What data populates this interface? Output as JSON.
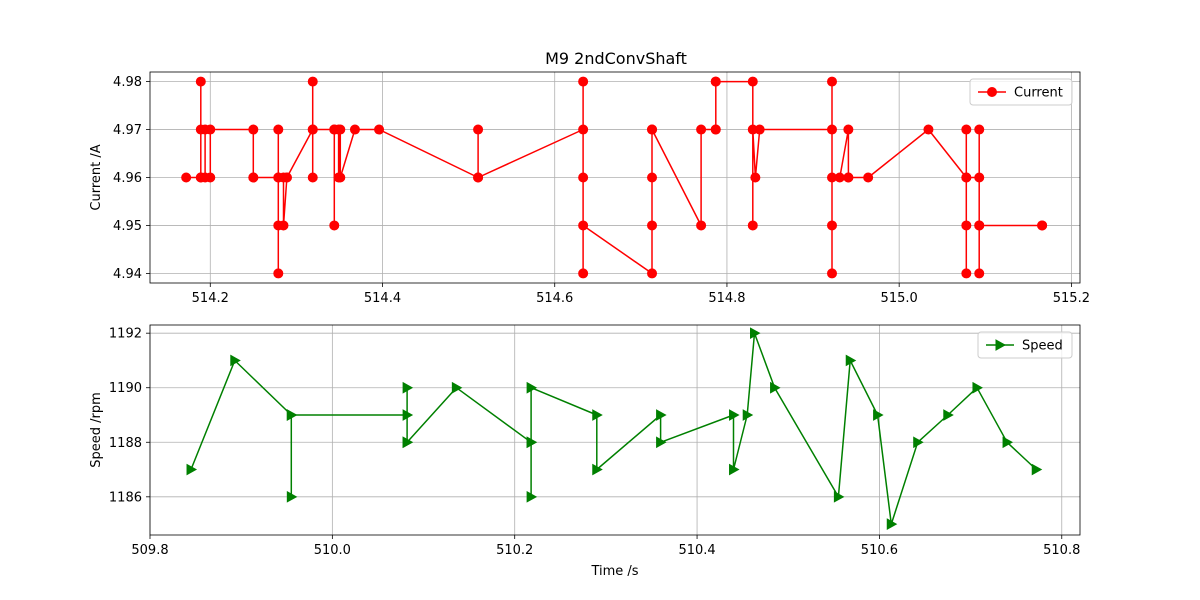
{
  "title": "M9 2ndConvShaft",
  "chart_data": [
    {
      "type": "line",
      "title": "M9 2ndConvShaft",
      "xlabel": "",
      "ylabel": "Current /A",
      "xlim": [
        514.13,
        515.21
      ],
      "ylim": [
        4.938,
        4.982
      ],
      "xticks": [
        514.2,
        514.4,
        514.6,
        514.8,
        515.0,
        515.2
      ],
      "xticklabels": [
        "514.2",
        "514.4",
        "514.6",
        "514.8",
        "515.0",
        "515.2"
      ],
      "yticks": [
        4.94,
        4.95,
        4.96,
        4.97,
        4.98
      ],
      "yticklabels": [
        "4.94",
        "4.95",
        "4.96",
        "4.97",
        "4.98"
      ],
      "grid": true,
      "legend_position": "upper right",
      "series": [
        {
          "name": "Current",
          "color": "#ff0000",
          "marker": "circle",
          "x": [
            514.172,
            514.189,
            514.189,
            514.189,
            514.189,
            514.194,
            514.194,
            514.2,
            514.2,
            514.25,
            514.25,
            514.25,
            514.279,
            514.279,
            514.279,
            514.279,
            514.279,
            514.285,
            514.285,
            514.289,
            514.289,
            514.319,
            514.319,
            514.319,
            514.319,
            514.344,
            514.344,
            514.344,
            514.349,
            514.349,
            514.351,
            514.351,
            514.368,
            514.396,
            514.511,
            514.511,
            514.511,
            514.633,
            514.633,
            514.633,
            514.633,
            514.633,
            514.713,
            514.713,
            514.713,
            514.713,
            514.713,
            514.77,
            514.77,
            514.787,
            514.787,
            514.787,
            514.787,
            514.83,
            514.83,
            514.83,
            514.833,
            514.838,
            514.922,
            514.922,
            514.922,
            514.922,
            514.922,
            514.931,
            514.941,
            514.941,
            514.941,
            514.964,
            515.034,
            515.078,
            515.078,
            515.078,
            515.078,
            515.078,
            515.093,
            515.093,
            515.093,
            515.093,
            515.093,
            515.166,
            515.166
          ],
          "y": [
            4.96,
            4.96,
            4.98,
            4.96,
            4.97,
            4.97,
            4.96,
            4.96,
            4.97,
            4.97,
            4.96,
            4.96,
            4.96,
            4.97,
            4.94,
            4.95,
            4.96,
            4.96,
            4.95,
            4.96,
            4.96,
            4.97,
            4.98,
            4.96,
            4.97,
            4.97,
            4.95,
            4.97,
            4.97,
            4.96,
            4.97,
            4.96,
            4.97,
            4.97,
            4.96,
            4.97,
            4.96,
            4.97,
            4.98,
            4.94,
            4.96,
            4.95,
            4.94,
            4.97,
            4.96,
            4.95,
            4.97,
            4.95,
            4.97,
            4.97,
            4.98,
            4.97,
            4.98,
            4.98,
            4.95,
            4.97,
            4.96,
            4.97,
            4.97,
            4.98,
            4.94,
            4.95,
            4.96,
            4.96,
            4.97,
            4.96,
            4.96,
            4.96,
            4.97,
            4.96,
            4.97,
            4.94,
            4.95,
            4.96,
            4.96,
            4.94,
            4.97,
            4.95,
            4.95,
            4.95,
            4.95
          ]
        }
      ]
    },
    {
      "type": "line",
      "title": "",
      "xlabel": "Time /s",
      "ylabel": "Speed /rpm",
      "xlim": [
        509.8,
        510.82
      ],
      "ylim": [
        1184.6,
        1192.3
      ],
      "xticks": [
        509.8,
        510.0,
        510.2,
        510.4,
        510.6,
        510.8
      ],
      "xticklabels": [
        "509.8",
        "510.0",
        "510.2",
        "510.4",
        "510.6",
        "510.8"
      ],
      "yticks": [
        1186,
        1188,
        1190,
        1192
      ],
      "yticklabels": [
        "1186",
        "1188",
        "1190",
        "1192"
      ],
      "grid": true,
      "legend_position": "upper right",
      "series": [
        {
          "name": "Speed",
          "color": "#008000",
          "marker": "triangle-right",
          "x": [
            509.845,
            509.893,
            509.955,
            509.955,
            509.955,
            510.082,
            510.082,
            510.082,
            510.082,
            510.136,
            510.218,
            510.218,
            510.218,
            510.218,
            510.29,
            510.29,
            510.36,
            510.36,
            510.44,
            510.44,
            510.455,
            510.463,
            510.485,
            510.555,
            510.568,
            510.598,
            510.613,
            510.642,
            510.675,
            510.707,
            510.74,
            510.772
          ],
          "y": [
            1187,
            1191,
            1189,
            1186,
            1189,
            1189,
            1190,
            1188,
            1188,
            1190,
            1188,
            1186,
            1188,
            1190,
            1189,
            1187,
            1189,
            1188,
            1189,
            1187,
            1189,
            1192,
            1190,
            1186,
            1191,
            1189,
            1185,
            1188,
            1189,
            1190,
            1188,
            1187
          ]
        }
      ]
    }
  ]
}
